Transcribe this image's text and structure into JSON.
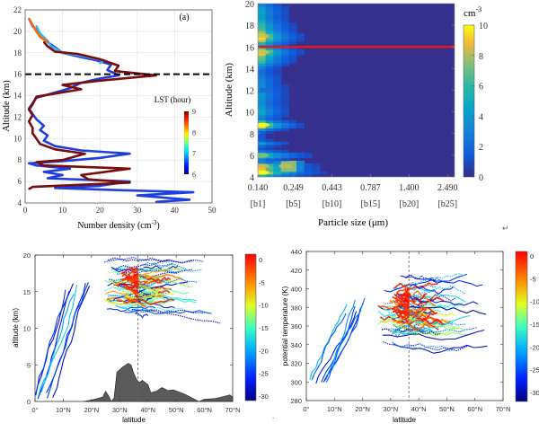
{
  "chart_data": [
    {
      "id": "a",
      "type": "line",
      "panel_label": "(a)",
      "xlabel": "Number density (cm",
      "xlabel_sup": "-3",
      "xlabel_end": ")",
      "ylabel": "Altitude (km)",
      "xlim": [
        0,
        50
      ],
      "ylim": [
        4,
        22
      ],
      "xticks": [
        "0",
        "10",
        "20",
        "30",
        "40",
        "50"
      ],
      "yticks": [
        "4",
        "6",
        "8",
        "10",
        "12",
        "14",
        "16",
        "18",
        "20",
        "22"
      ],
      "grid": true,
      "reference_line": {
        "y": 16,
        "style": "dashed",
        "color": "#000000"
      },
      "colorbar": {
        "title": "LST (hour)",
        "ticks": [
          "6",
          "7",
          "8",
          "9"
        ],
        "range": [
          6,
          9
        ]
      },
      "series": [
        {
          "name": "early (blue, ~6 LST)",
          "color": "#1e3fe0",
          "points": [
            [
              35,
              4.1
            ],
            [
              44,
              4.3
            ],
            [
              30,
              4.7
            ],
            [
              45,
              5.0
            ],
            [
              25,
              5.2
            ],
            [
              8,
              5.4
            ],
            [
              20,
              5.6
            ],
            [
              28,
              6.0
            ],
            [
              6,
              6.3
            ],
            [
              10,
              6.6
            ],
            [
              5,
              6.9
            ],
            [
              12,
              7.2
            ],
            [
              3,
              7.5
            ],
            [
              1,
              7.7
            ],
            [
              10,
              7.9
            ],
            [
              20,
              8.2
            ],
            [
              28,
              8.6
            ],
            [
              15,
              8.9
            ],
            [
              8,
              9.3
            ],
            [
              5,
              9.8
            ],
            [
              6,
              10.3
            ],
            [
              4,
              10.8
            ],
            [
              5,
              11.2
            ],
            [
              3,
              11.8
            ],
            [
              2,
              12.3
            ],
            [
              1,
              12.8
            ],
            [
              2,
              13.3
            ],
            [
              3,
              13.8
            ],
            [
              8,
              14.3
            ],
            [
              12,
              14.7
            ],
            [
              15,
              15.2
            ],
            [
              20,
              15.6
            ],
            [
              25,
              15.9
            ],
            [
              22,
              16.4
            ],
            [
              23,
              16.9
            ],
            [
              19,
              17.3
            ],
            [
              15,
              17.6
            ],
            [
              10,
              18.0
            ],
            [
              8,
              18.5
            ],
            [
              6,
              19.0
            ],
            [
              4,
              19.7
            ],
            [
              2,
              20.5
            ],
            [
              1,
              21.2
            ]
          ]
        },
        {
          "name": "mid (cyan, ~7 LST)",
          "color": "#35b6ee",
          "points": [
            [
              20,
              17.0
            ],
            [
              21,
              17.3
            ],
            [
              14,
              17.8
            ],
            [
              10,
              18.0
            ],
            [
              7,
              18.6
            ],
            [
              6,
              19.1
            ],
            [
              4,
              19.8
            ],
            [
              3,
              20.5
            ]
          ]
        },
        {
          "name": "late (dark red, ~9 LST)",
          "color": "#7a0d0d",
          "points": [
            [
              1,
              5.3
            ],
            [
              2,
              5.5
            ],
            [
              28,
              5.9
            ],
            [
              17,
              6.2
            ],
            [
              15,
              6.6
            ],
            [
              28,
              7.2
            ],
            [
              5,
              7.5
            ],
            [
              3,
              7.8
            ],
            [
              10,
              8.0
            ],
            [
              16,
              8.6
            ],
            [
              8,
              9.0
            ],
            [
              4,
              9.5
            ],
            [
              3,
              10.0
            ],
            [
              2,
              10.5
            ],
            [
              2,
              11.0
            ],
            [
              1,
              11.6
            ],
            [
              2,
              12.2
            ],
            [
              1,
              12.7
            ],
            [
              2,
              13.2
            ],
            [
              3,
              13.9
            ],
            [
              8,
              14.2
            ],
            [
              15,
              14.6
            ],
            [
              10,
              15.0
            ],
            [
              20,
              15.4
            ],
            [
              35,
              15.9
            ],
            [
              24,
              16.3
            ],
            [
              25,
              16.8
            ],
            [
              20,
              17.4
            ],
            [
              14,
              17.9
            ],
            [
              8,
              18.1
            ],
            [
              6,
              18.6
            ],
            [
              5,
              19.0
            ]
          ]
        },
        {
          "name": "top (red-yellow, ~8-9 LST)",
          "color": "#f06a10",
          "points": [
            [
              6,
              19.0
            ],
            [
              4,
              19.5
            ],
            [
              3,
              20.0
            ],
            [
              2,
              20.6
            ],
            [
              1,
              21.2
            ]
          ]
        }
      ]
    },
    {
      "id": "b",
      "type": "heatmap",
      "xlabel": "Particle size (μm)",
      "ylabel": "Altitude (km)",
      "ylim": [
        4,
        20
      ],
      "yticks": [
        "4",
        "6",
        "8",
        "10",
        "12",
        "14",
        "16",
        "18",
        "20"
      ],
      "xticks": [
        "0.140",
        "0.249",
        "0.443",
        "0.787",
        "1.400",
        "2.490"
      ],
      "xticks_bins": [
        "[b1]",
        "[b5]",
        "[b10]",
        "[b15]",
        "[b20]",
        "[b25]"
      ],
      "reference_line": {
        "y": 16,
        "color": "#e3161b"
      },
      "colorbar": {
        "title": "cm",
        "title_sup": "-3",
        "ticks": [
          "0",
          "2",
          "4",
          "6",
          "8",
          "10"
        ],
        "range": [
          0,
          10
        ]
      },
      "hotspots": [
        {
          "bin": 1,
          "altitude": 4.4,
          "value": 10
        },
        {
          "bin": 1,
          "altitude": 5.0,
          "value": 8
        },
        {
          "bin": 4,
          "altitude": 5.0,
          "value": 8
        },
        {
          "bin": 1,
          "altitude": 6.0,
          "value": 7
        },
        {
          "bin": 1,
          "altitude": 8.8,
          "value": 10
        },
        {
          "bin": 1,
          "altitude": 15.5,
          "value": 8
        },
        {
          "bin": 1,
          "altitude": 17.0,
          "value": 8
        },
        {
          "bin": 1,
          "altitude": 12.0,
          "value": 2
        }
      ]
    },
    {
      "id": "c",
      "type": "line",
      "xlabel": "latitude",
      "ylabel": "altitude (km)",
      "xlim": [
        0,
        70
      ],
      "ylim": [
        0,
        20
      ],
      "xticks": [
        "0°",
        "10°N",
        "20°N",
        "30°N",
        "40°N",
        "50°N",
        "60°N",
        "70°N"
      ],
      "yticks": [
        "0",
        "5",
        "10",
        "15",
        "20"
      ],
      "reference_line": {
        "x": 36.5,
        "style": "dashed"
      },
      "colorbar": {
        "ticks": [
          "0",
          "-5",
          "-10",
          "-15",
          "-20",
          "-25",
          "-30"
        ],
        "range": [
          -30,
          0
        ]
      },
      "terrain": [
        [
          17,
          0
        ],
        [
          20,
          0.2
        ],
        [
          24,
          0.6
        ],
        [
          25,
          1.4
        ],
        [
          26,
          0.8
        ],
        [
          27,
          0
        ],
        [
          28,
          0.5
        ],
        [
          29,
          4
        ],
        [
          31,
          4.7
        ],
        [
          33,
          5.2
        ],
        [
          34,
          5.0
        ],
        [
          35,
          3.8
        ],
        [
          36,
          3.0
        ],
        [
          37,
          2.6
        ],
        [
          38,
          2.9
        ],
        [
          40,
          2.3
        ],
        [
          41,
          1.2
        ],
        [
          43,
          1.4
        ],
        [
          45,
          1.9
        ],
        [
          47,
          1.5
        ],
        [
          49,
          1.6
        ],
        [
          51,
          1.3
        ],
        [
          53,
          1.0
        ],
        [
          55,
          0.6
        ],
        [
          57,
          0.2
        ],
        [
          58,
          0
        ],
        [
          60,
          0.3
        ],
        [
          64,
          0.4
        ],
        [
          68,
          0.8
        ],
        [
          69,
          0.9
        ],
        [
          70,
          0.6
        ]
      ]
    },
    {
      "id": "d",
      "type": "line",
      "xlabel": "latitude",
      "ylabel": "potential temperature (K)",
      "xlim": [
        0,
        70
      ],
      "ylim": [
        280,
        440
      ],
      "xticks": [
        "0°",
        "10°N",
        "20°N",
        "30°N",
        "40°N",
        "50°N",
        "60°N",
        "70°N"
      ],
      "yticks": [
        "280",
        "300",
        "320",
        "340",
        "360",
        "380",
        "400",
        "420",
        "440"
      ],
      "reference_line": {
        "x": 36.5,
        "style": "dashed"
      },
      "colorbar": {
        "ticks": [
          "0",
          "-5",
          "-10",
          "-15",
          "-20",
          "-25",
          "-30"
        ],
        "range": [
          -30,
          0
        ]
      }
    }
  ],
  "marks": {
    "return_symbol": "↵",
    "dot": "."
  }
}
